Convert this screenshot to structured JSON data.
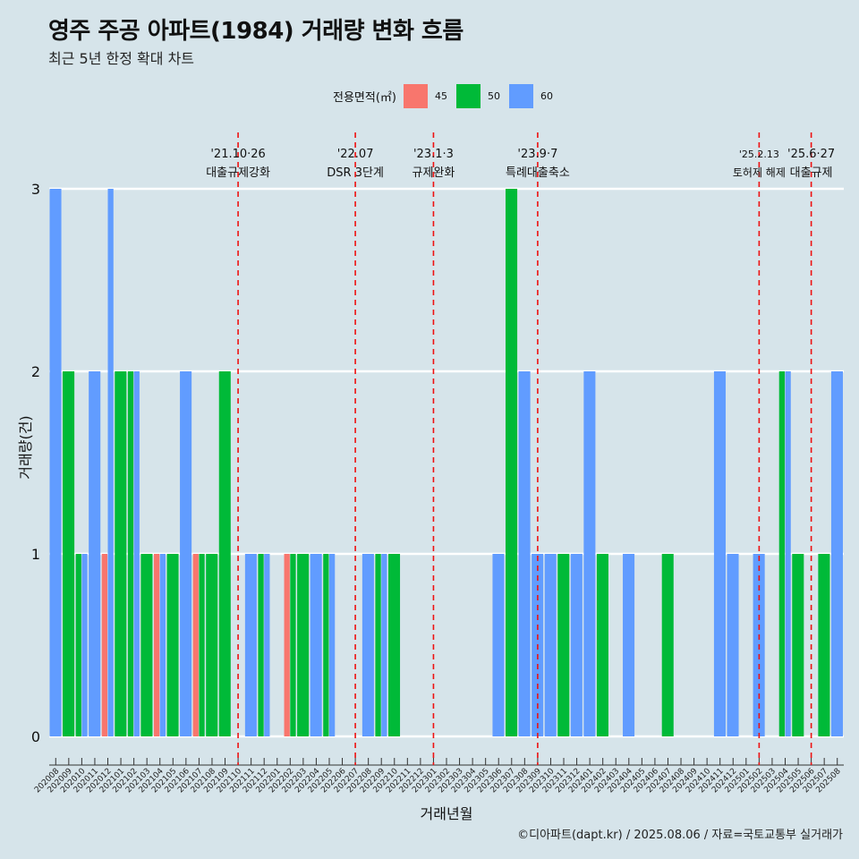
{
  "title": "영주 주공 아파트(1984) 거래량 변화 흐름",
  "subtitle": "최근 5년 한정 확대 차트",
  "caption": "©디아파트(dapt.kr) / 2025.08.06 / 자료=국토교통부 실거래가",
  "legend": {
    "title": "전용면적(㎡)",
    "items": [
      {
        "label": "45",
        "color": "#f8766d"
      },
      {
        "label": "50",
        "color": "#00ba38"
      },
      {
        "label": "60",
        "color": "#619cff"
      }
    ]
  },
  "chart_data": {
    "type": "bar",
    "xlabel": "거래년월",
    "ylabel": "거래량(건)",
    "ylim": [
      0,
      3
    ],
    "yticks": [
      0,
      1,
      2,
      3
    ],
    "categories": [
      "202008",
      "202009",
      "202010",
      "202011",
      "202012",
      "202101",
      "202102",
      "202103",
      "202104",
      "202105",
      "202106",
      "202107",
      "202108",
      "202109",
      "202110",
      "202111",
      "202112",
      "202201",
      "202202",
      "202203",
      "202204",
      "202205",
      "202206",
      "202207",
      "202208",
      "202209",
      "202210",
      "202211",
      "202212",
      "202301",
      "202302",
      "202303",
      "202304",
      "202305",
      "202306",
      "202307",
      "202308",
      "202309",
      "202310",
      "202311",
      "202312",
      "202401",
      "202402",
      "202403",
      "202404",
      "202405",
      "202406",
      "202407",
      "202408",
      "202409",
      "202410",
      "202411",
      "202412",
      "202501",
      "202502",
      "202503",
      "202504",
      "202505",
      "202506",
      "202507",
      "202508"
    ],
    "series": [
      {
        "name": "45",
        "color": "#f8766d",
        "values": [
          0,
          0,
          0,
          0,
          1,
          0,
          0,
          0,
          1,
          0,
          0,
          1,
          0,
          0,
          0,
          0,
          0,
          0,
          1,
          0,
          0,
          0,
          0,
          0,
          0,
          0,
          0,
          0,
          0,
          0,
          0,
          0,
          0,
          0,
          0,
          0,
          0,
          0,
          0,
          0,
          0,
          0,
          0,
          0,
          0,
          0,
          0,
          0,
          0,
          0,
          0,
          0,
          0,
          0,
          0,
          0,
          0,
          0,
          0,
          0,
          0
        ]
      },
      {
        "name": "50",
        "color": "#00ba38",
        "values": [
          0,
          2,
          1,
          0,
          0,
          2,
          2,
          1,
          0,
          1,
          0,
          1,
          1,
          2,
          0,
          0,
          1,
          0,
          1,
          1,
          0,
          1,
          0,
          0,
          0,
          1,
          1,
          0,
          0,
          0,
          0,
          0,
          0,
          0,
          0,
          3,
          0,
          0,
          0,
          1,
          0,
          0,
          1,
          0,
          0,
          0,
          0,
          1,
          0,
          0,
          0,
          0,
          0,
          0,
          0,
          0,
          2,
          1,
          0,
          1,
          0
        ]
      },
      {
        "name": "60",
        "color": "#619cff",
        "values": [
          3,
          0,
          1,
          2,
          3,
          0,
          2,
          0,
          1,
          0,
          2,
          0,
          0,
          0,
          0,
          1,
          1,
          0,
          0,
          0,
          1,
          1,
          0,
          0,
          1,
          1,
          0,
          0,
          0,
          0,
          0,
          0,
          0,
          0,
          1,
          0,
          2,
          1,
          1,
          0,
          1,
          2,
          0,
          0,
          1,
          0,
          0,
          0,
          0,
          0,
          0,
          2,
          1,
          0,
          1,
          0,
          2,
          0,
          0,
          0,
          2
        ]
      }
    ],
    "annotations": [
      {
        "at": "202110",
        "label_top": "'21.10·26",
        "label_bottom": "대출규제강화"
      },
      {
        "at": "202207",
        "label_top": "'22.07",
        "label_bottom": "DSR 3단계"
      },
      {
        "at": "202301",
        "label_top": "'23.1·3",
        "label_bottom": "규제완화"
      },
      {
        "at": "202309",
        "label_top": "'23.9·7",
        "label_bottom": "특례대출축소"
      },
      {
        "at": "202502",
        "label_top": "'25.2.13",
        "label_bottom": "토허제 해제"
      },
      {
        "at": "202506",
        "label_top": "'25.6·27",
        "label_bottom": "대출규제"
      }
    ]
  }
}
